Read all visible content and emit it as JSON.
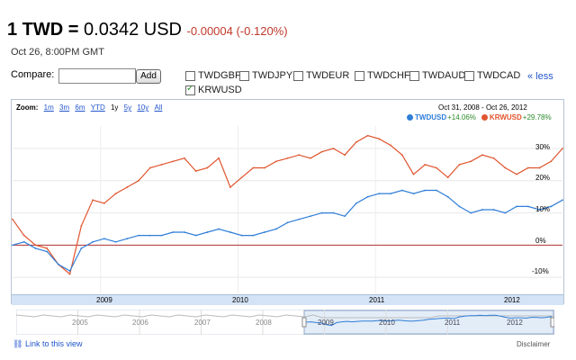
{
  "header": {
    "rate_prefix": "1 TWD =",
    "rate_value": "0.0342 USD",
    "change": "-0.00004 (-0.120%)",
    "timestamp": "Oct 26, 8:00PM GMT"
  },
  "compare": {
    "label": "Compare:",
    "input_value": "",
    "add_label": "Add",
    "less_label": "« less",
    "options": [
      {
        "label": "TWDGBP",
        "checked": false
      },
      {
        "label": "TWDJPY",
        "checked": false
      },
      {
        "label": "TWDEUR",
        "checked": false
      },
      {
        "label": "TWDCHF",
        "checked": false
      },
      {
        "label": "TWDAUD",
        "checked": false
      },
      {
        "label": "TWDCAD",
        "checked": false
      },
      {
        "label": "KRWUSD",
        "checked": true
      }
    ]
  },
  "chart": {
    "zoom_label": "Zoom:",
    "zoom_options": [
      "1m",
      "3m",
      "6m",
      "YTD",
      "1y",
      "5y",
      "10y",
      "All"
    ],
    "zoom_selected": "1y",
    "date_start": "Oct 31, 2008",
    "date_sep": "-",
    "date_end": "Oct 26, 2012",
    "legend": [
      {
        "name": "TWDUSD",
        "change": "+14.06%",
        "color": "#2f7ed8"
      },
      {
        "name": "KRWUSD",
        "change": "+29.78%",
        "color": "#e0552f"
      }
    ],
    "y_ticks": [
      "30%",
      "20%",
      "10%",
      "0%",
      "-10%"
    ],
    "x_ticks": [
      "2009",
      "2010",
      "2011",
      "2012"
    ],
    "mini_ticks": [
      "2005",
      "2006",
      "2007",
      "2008",
      "2009",
      "2010",
      "2011",
      "2012"
    ]
  },
  "chart_data": {
    "type": "line",
    "x": [
      "2008-10",
      "2008-11",
      "2008-12",
      "2009-01",
      "2009-02",
      "2009-03",
      "2009-04",
      "2009-05",
      "2009-06",
      "2009-07",
      "2009-08",
      "2009-09",
      "2009-10",
      "2009-11",
      "2009-12",
      "2010-01",
      "2010-02",
      "2010-03",
      "2010-04",
      "2010-05",
      "2010-06",
      "2010-07",
      "2010-08",
      "2010-09",
      "2010-10",
      "2010-11",
      "2010-12",
      "2011-01",
      "2011-02",
      "2011-03",
      "2011-04",
      "2011-05",
      "2011-06",
      "2011-07",
      "2011-08",
      "2011-09",
      "2011-10",
      "2011-11",
      "2011-12",
      "2012-01",
      "2012-02",
      "2012-03",
      "2012-04",
      "2012-05",
      "2012-06",
      "2012-07",
      "2012-08",
      "2012-09",
      "2012-10"
    ],
    "series": [
      {
        "name": "TWDUSD",
        "color": "#2f7ed8",
        "values": [
          0,
          1,
          -1,
          -2,
          -6,
          -8,
          -1,
          1,
          2,
          1,
          2,
          3,
          3,
          3,
          4,
          4,
          3,
          4,
          5,
          4,
          3,
          3,
          4,
          5,
          7,
          8,
          9,
          10,
          10,
          9,
          13,
          15,
          16,
          16,
          17,
          16,
          17,
          17,
          15,
          12,
          10,
          11,
          11,
          10,
          12,
          12,
          11,
          12,
          14
        ]
      },
      {
        "name": "KRWUSD",
        "color": "#e0552f",
        "values": [
          8,
          3,
          0,
          -1,
          -6,
          -9,
          6,
          14,
          13,
          16,
          18,
          20,
          24,
          25,
          26,
          27,
          23,
          24,
          27,
          18,
          21,
          24,
          24,
          26,
          27,
          28,
          27,
          29,
          30,
          28,
          32,
          34,
          33,
          31,
          28,
          22,
          25,
          24,
          21,
          25,
          26,
          28,
          27,
          24,
          22,
          24,
          24,
          26,
          30
        ]
      }
    ],
    "ylim": [
      -15,
      37
    ]
  },
  "footer": {
    "link_label": "Link to this view",
    "disclaimer": "Disclaimer"
  }
}
